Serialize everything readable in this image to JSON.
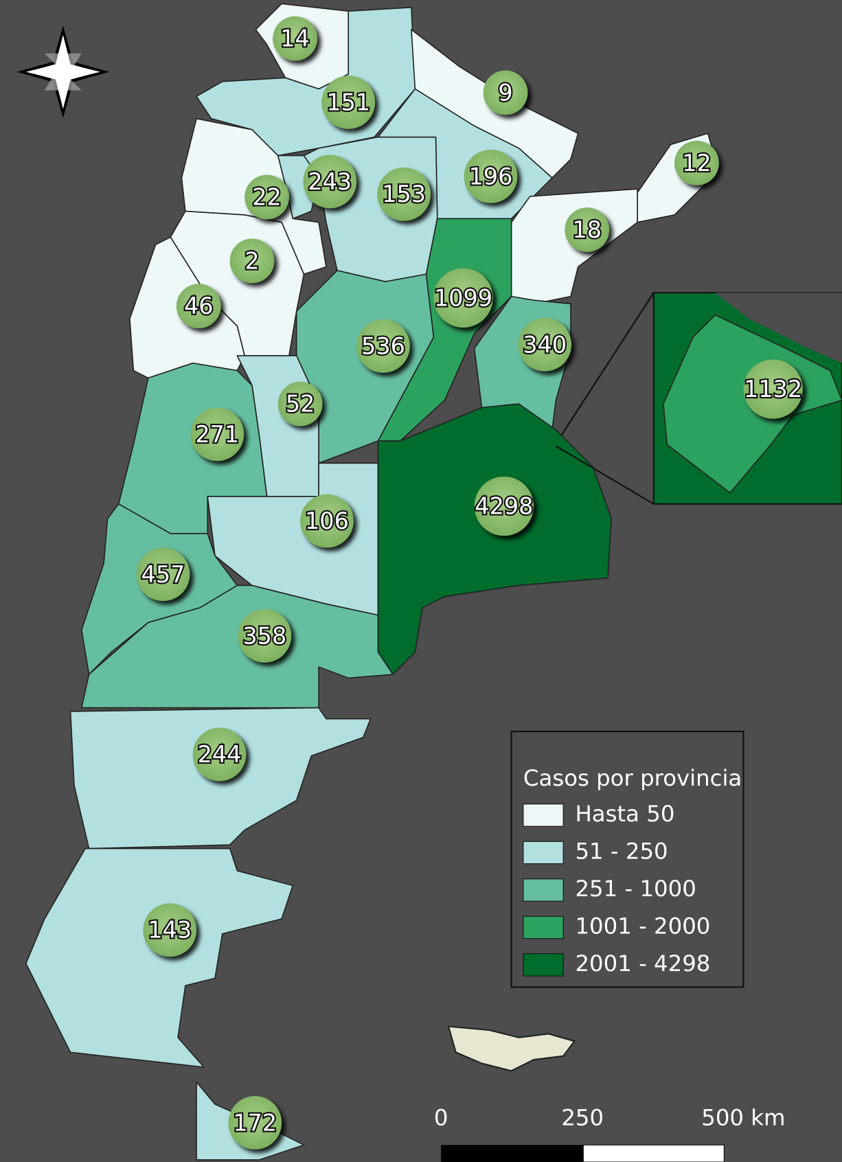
{
  "markers": [
    14,
    151,
    9,
    12,
    243,
    153,
    196,
    22,
    18,
    2,
    1099,
    46,
    536,
    340,
    1132,
    52,
    271,
    4298,
    106,
    457,
    358,
    244,
    143,
    172
  ],
  "legend": {
    "title": "Casos por provincia",
    "items": [
      {
        "label": "Hasta 50",
        "color": "#eef8f9"
      },
      {
        "label": "51 - 250",
        "color": "#b2e0e1"
      },
      {
        "label": "251 - 1000",
        "color": "#66bea0"
      },
      {
        "label": "1001 - 2000",
        "color": "#2ca25f"
      },
      {
        "label": "2001 - 4298",
        "color": "#006d2c"
      }
    ]
  },
  "scale_bar": {
    "labels": [
      "0",
      "250",
      "500 km"
    ]
  }
}
